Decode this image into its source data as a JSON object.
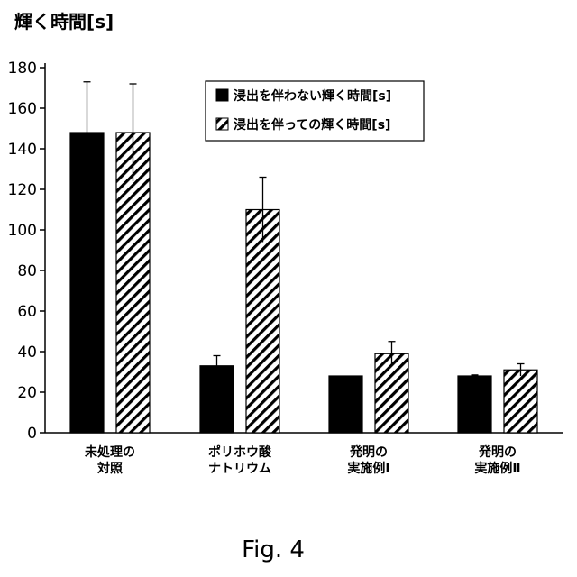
{
  "chart_data": {
    "type": "bar",
    "title": "",
    "ylabel": "輝く時間[s]",
    "xlabel": "",
    "ylim": [
      0,
      180
    ],
    "yticks": [
      0,
      20,
      40,
      60,
      80,
      100,
      120,
      140,
      160,
      180
    ],
    "grid": false,
    "legend_position": "top-right",
    "categories": [
      [
        "未処理の",
        "対照"
      ],
      [
        "ポリホウ酸",
        "ナトリウム"
      ],
      [
        "発明の",
        "実施例Ⅰ"
      ],
      [
        "発明の",
        "実施例Ⅱ"
      ]
    ],
    "series": [
      {
        "name": "浸出を伴わない輝く時間[s]",
        "fill": "solid",
        "color": "#000000",
        "values": [
          148,
          33,
          28,
          28
        ],
        "errors": [
          25,
          5,
          0,
          0.5
        ]
      },
      {
        "name": "浸出を伴っての輝く時間[s]",
        "fill": "hatched",
        "color": "#000000",
        "values": [
          148,
          110,
          39,
          31
        ],
        "errors": [
          24,
          16,
          6,
          3
        ]
      }
    ]
  },
  "caption": "Fig. 4"
}
